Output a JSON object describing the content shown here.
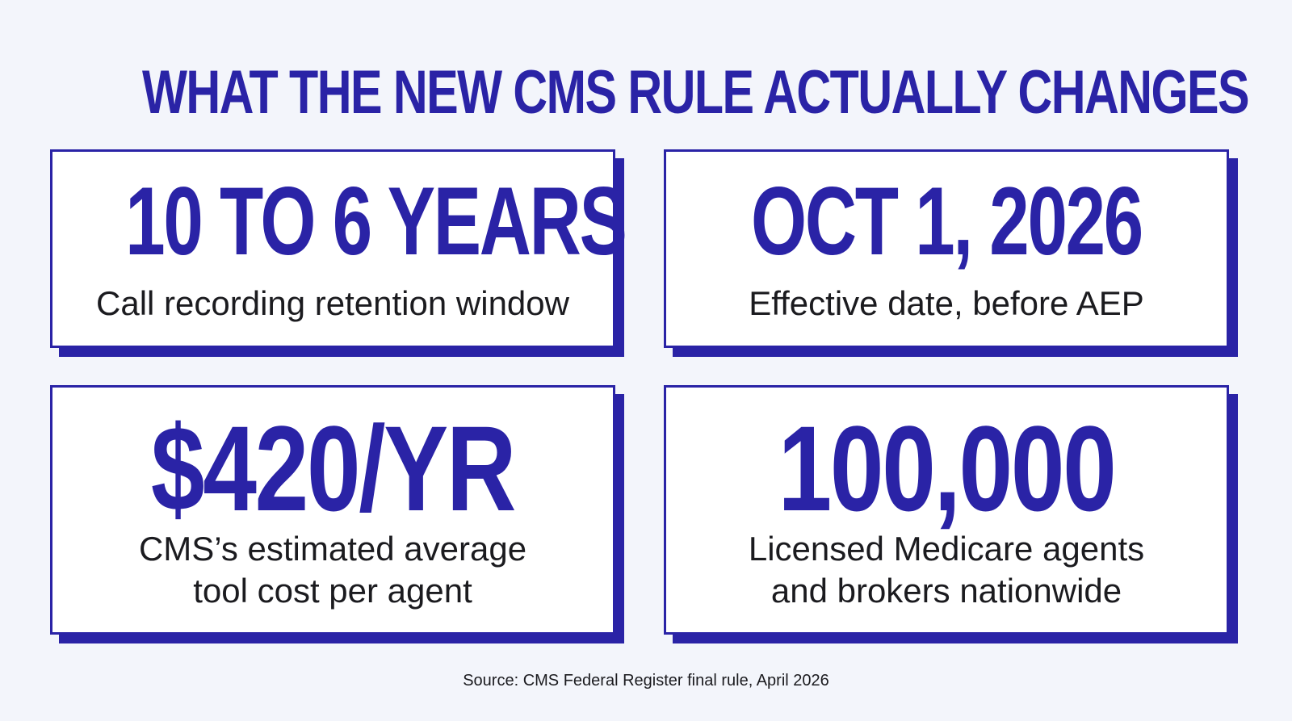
{
  "title": "WHAT THE NEW CMS RULE ACTUALLY CHANGES",
  "cards": [
    {
      "stat": "10 TO 6 YEARS",
      "desc_lines": [
        "Call recording retention window"
      ]
    },
    {
      "stat": "OCT 1, 2026",
      "desc_lines": [
        "Effective date, before AEP"
      ]
    },
    {
      "stat": "$420/YR",
      "desc_lines": [
        "CMS’s estimated average",
        "tool cost per agent"
      ]
    },
    {
      "stat": "100,000",
      "desc_lines": [
        "Licensed Medicare agents",
        "and brokers nationwide"
      ]
    }
  ],
  "source": "Source: CMS Federal Register final rule, April 2026",
  "colors": {
    "accent": "#2a23a6",
    "background": "#f3f5fb",
    "card": "#ffffff",
    "text": "#1b1b1f"
  }
}
